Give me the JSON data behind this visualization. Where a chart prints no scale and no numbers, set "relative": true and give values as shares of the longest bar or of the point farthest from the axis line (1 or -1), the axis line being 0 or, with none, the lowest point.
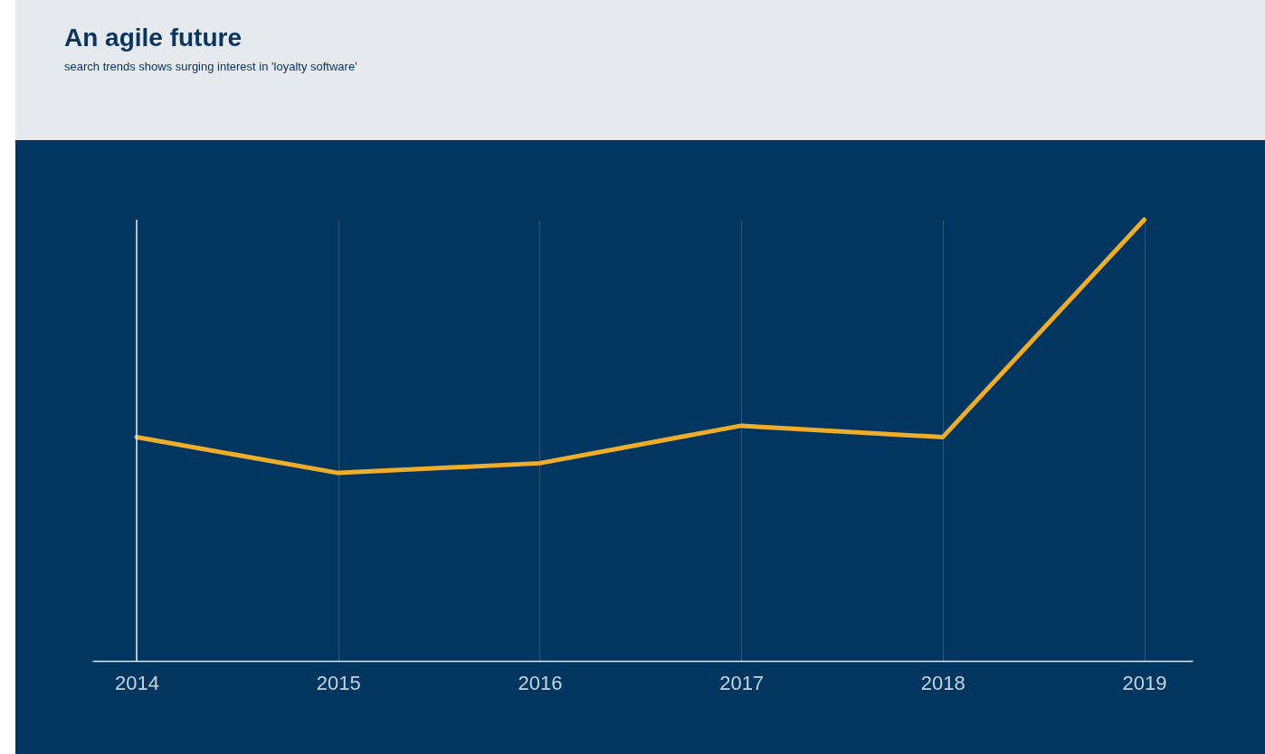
{
  "chart_data": {
    "type": "line",
    "title": "An agile future",
    "subtitle": "search trends shows surging interest in 'loyalty software'",
    "x": [
      2014,
      2015,
      2016,
      2017,
      2018,
      2019
    ],
    "series": [
      {
        "color": "#f0ad2a",
        "values": [
          0.507,
          0.426,
          0.448,
          0.533,
          0.507,
          1
        ]
      }
    ],
    "ref_lines": [
      {
        "axis": "x",
        "value": 2014,
        "color": "#e6eaee"
      }
    ],
    "relative": true,
    "xlim": [
      2013.78,
      2019.24
    ],
    "xticks": [
      2014,
      2015,
      2016,
      2017,
      2018,
      2019
    ],
    "grid": "x",
    "legend": false,
    "marker": "none",
    "line_style": "solid"
  }
}
